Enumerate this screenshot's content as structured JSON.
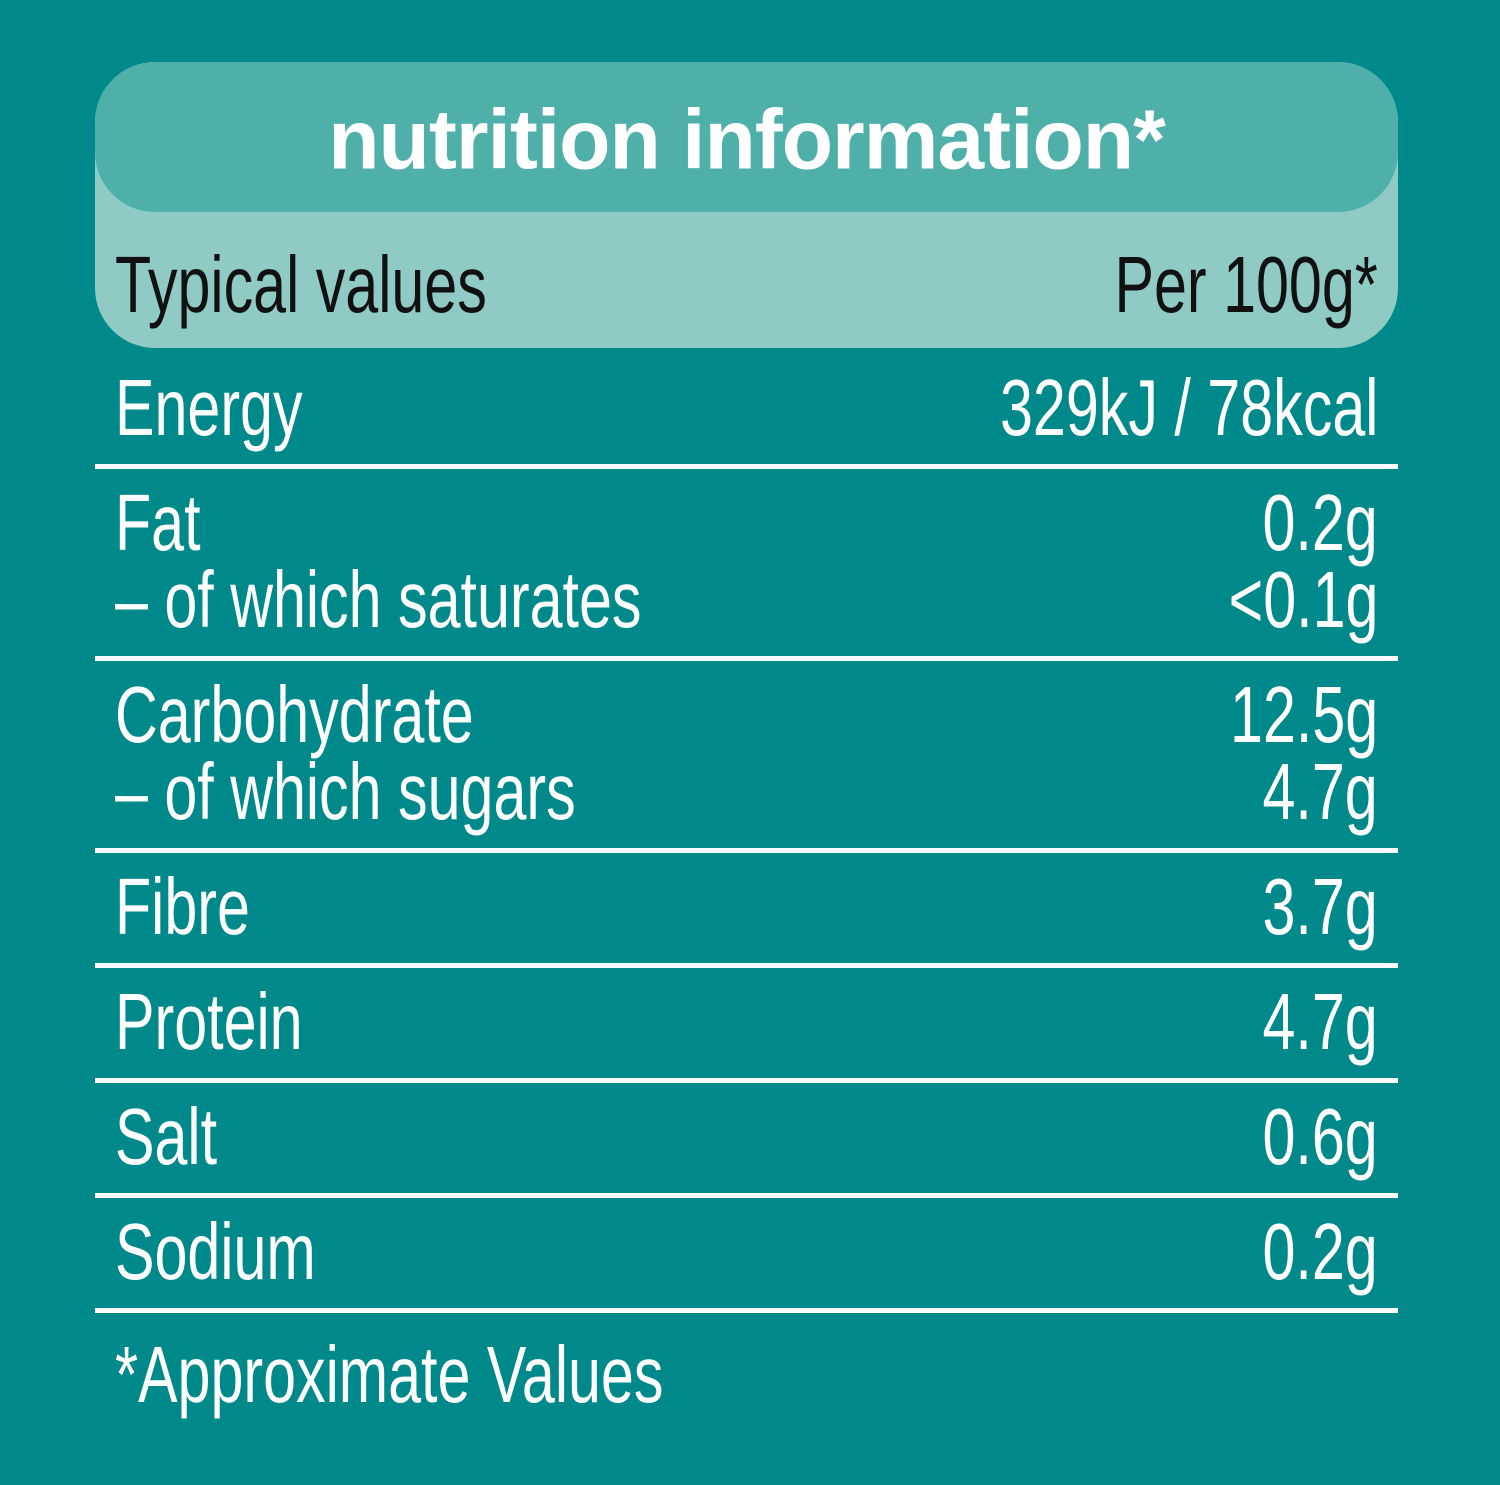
{
  "header": {
    "title": "nutrition information*",
    "column_label": "Typical values",
    "column_value": "Per 100g*"
  },
  "table": {
    "groups": [
      [
        {
          "label": "Energy",
          "value": "329kJ / 78kcal"
        }
      ],
      [
        {
          "label": "Fat",
          "value": "0.2g"
        },
        {
          "label": "– of which saturates",
          "value": "<0.1g"
        }
      ],
      [
        {
          "label": "Carbohydrate",
          "value": "12.5g"
        },
        {
          "label": "– of which sugars",
          "value": "4.7g"
        }
      ],
      [
        {
          "label": "Fibre",
          "value": "3.7g"
        }
      ],
      [
        {
          "label": "Protein",
          "value": "4.7g"
        }
      ],
      [
        {
          "label": "Salt",
          "value": "0.6g"
        }
      ],
      [
        {
          "label": "Sodium",
          "value": "0.2g"
        }
      ]
    ]
  },
  "footnote": "*Approximate Values"
}
